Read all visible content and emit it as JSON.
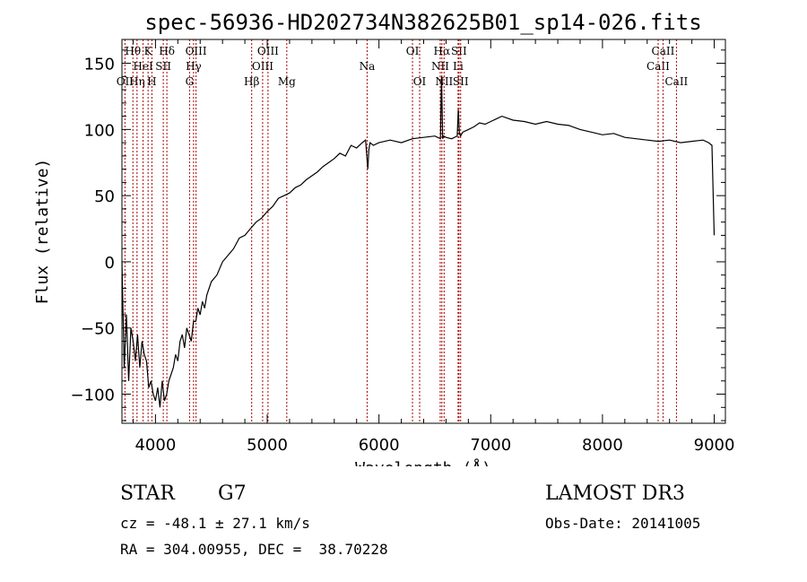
{
  "footer": {
    "object_class": "STAR",
    "subclass": "G7",
    "survey": "LAMOST DR3",
    "cz_text": "cz = -48.1 ± 27.1 km/s",
    "obs_date": "Obs-Date: 20141005",
    "coords": "RA = 304.00955, DEC =  38.70228"
  },
  "chart_data": {
    "type": "line",
    "title": "spec-56936-HD202734N382625B01_sp14-026.fits",
    "xlabel": "Wavelength (Å)",
    "ylabel": "Flux (relative)",
    "xlim": [
      3700,
      9100
    ],
    "ylim": [
      -122,
      168
    ],
    "x_ticks": [
      4000,
      5000,
      6000,
      7000,
      8000,
      9000
    ],
    "y_ticks": [
      -100,
      -50,
      0,
      50,
      100,
      150
    ],
    "y_tick_labels": [
      "−100",
      "−50",
      "0",
      "50",
      "100",
      "150"
    ],
    "grid": false,
    "line_color": "#000000",
    "marker_color": "#aa0000",
    "series": [
      {
        "x": [
          3700,
          3720,
          3740,
          3760,
          3780,
          3800,
          3820,
          3840,
          3860,
          3880,
          3900,
          3920,
          3940,
          3960,
          3980,
          4000,
          4020,
          4040,
          4060,
          4080,
          4100,
          4120,
          4140,
          4160,
          4180,
          4200,
          4220,
          4240,
          4260,
          4280,
          4300,
          4320,
          4340,
          4360,
          4380,
          4400,
          4420,
          4440,
          4460,
          4480,
          4500,
          4550,
          4600,
          4650,
          4700,
          4750,
          4800,
          4850,
          4900,
          4950,
          5000,
          5050,
          5100,
          5150,
          5200,
          5250,
          5300,
          5350,
          5400,
          5450,
          5500,
          5550,
          5600,
          5650,
          5700,
          5750,
          5800,
          5850,
          5880,
          5900,
          5910,
          5920,
          5950,
          6000,
          6100,
          6200,
          6300,
          6400,
          6500,
          6550,
          6560,
          6570,
          6580,
          6600,
          6650,
          6700,
          6710,
          6720,
          6730,
          6750,
          6800,
          6850,
          6900,
          6950,
          7000,
          7050,
          7100,
          7200,
          7300,
          7400,
          7500,
          7600,
          7700,
          7800,
          7900,
          8000,
          8100,
          8200,
          8300,
          8400,
          8500,
          8600,
          8700,
          8800,
          8900,
          8950,
          8980,
          9000
        ],
        "y": [
          0,
          -80,
          -40,
          -90,
          -50,
          -60,
          -75,
          -55,
          -80,
          -60,
          -70,
          -75,
          -95,
          -90,
          -100,
          -105,
          -95,
          -110,
          -90,
          -105,
          -100,
          -90,
          -85,
          -80,
          -70,
          -75,
          -60,
          -55,
          -65,
          -50,
          -55,
          -60,
          -45,
          -45,
          -35,
          -40,
          -30,
          -35,
          -25,
          -20,
          -15,
          -10,
          0,
          5,
          10,
          18,
          20,
          25,
          30,
          33,
          38,
          42,
          48,
          50,
          52,
          56,
          58,
          62,
          65,
          68,
          72,
          75,
          78,
          82,
          80,
          88,
          86,
          90,
          92,
          70,
          85,
          90,
          88,
          90,
          92,
          90,
          93,
          94,
          95,
          93,
          140,
          93,
          95,
          94,
          93,
          95,
          115,
          97,
          95,
          98,
          100,
          102,
          105,
          104,
          106,
          108,
          110,
          107,
          106,
          104,
          106,
          104,
          103,
          100,
          98,
          96,
          97,
          94,
          93,
          92,
          91,
          92,
          90,
          91,
          92,
          90,
          88,
          20
        ]
      }
    ],
    "spectral_lines": [
      {
        "name": "Hθ",
        "wl": 3798,
        "row": 1
      },
      {
        "name": "OII",
        "wl": 3727,
        "row": 3
      },
      {
        "name": "Hη",
        "wl": 3835,
        "row": 3
      },
      {
        "name": "HeI",
        "wl": 3889,
        "row": 2
      },
      {
        "name": "K",
        "wl": 3934,
        "row": 1
      },
      {
        "name": "H",
        "wl": 3968,
        "row": 3
      },
      {
        "name": "SII",
        "wl": 4070,
        "row": 2
      },
      {
        "name": "Hδ",
        "wl": 4102,
        "row": 1
      },
      {
        "name": "G",
        "wl": 4305,
        "row": 3
      },
      {
        "name": "Hγ",
        "wl": 4341,
        "row": 2
      },
      {
        "name": "OIII",
        "wl": 4363,
        "row": 1
      },
      {
        "name": "Hβ",
        "wl": 4861,
        "row": 3
      },
      {
        "name": "OIII",
        "wl": 4959,
        "row": 2
      },
      {
        "name": "OIII",
        "wl": 5007,
        "row": 1
      },
      {
        "name": "Mg",
        "wl": 5175,
        "row": 3
      },
      {
        "name": "Na",
        "wl": 5894,
        "row": 2
      },
      {
        "name": "OI",
        "wl": 6300,
        "row": 1
      },
      {
        "name": "OI",
        "wl": 6364,
        "row": 3
      },
      {
        "name": "NII",
        "wl": 6548,
        "row": 2
      },
      {
        "name": "Hα",
        "wl": 6563,
        "row": 1
      },
      {
        "name": "NII",
        "wl": 6583,
        "row": 3
      },
      {
        "name": "Li",
        "wl": 6708,
        "row": 2
      },
      {
        "name": "SII",
        "wl": 6716,
        "row": 1
      },
      {
        "name": "SII",
        "wl": 6731,
        "row": 3
      },
      {
        "name": "CaII",
        "wl": 8498,
        "row": 2
      },
      {
        "name": "CaII",
        "wl": 8542,
        "row": 1
      },
      {
        "name": "CaII",
        "wl": 8662,
        "row": 3
      }
    ]
  }
}
